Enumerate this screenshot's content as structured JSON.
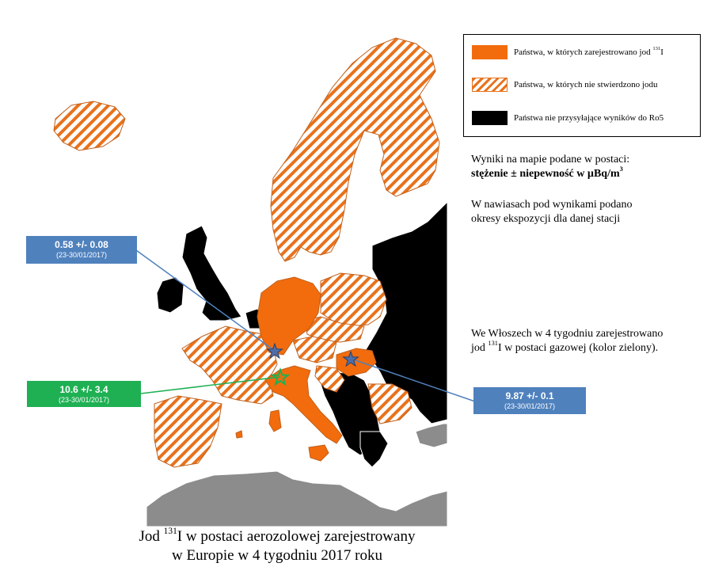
{
  "legend": {
    "detected_label": "Państwa, w których zarejestrowano jod",
    "detected_isotope": "131",
    "detected_element": "I",
    "not_detected_label": "Państwa, w których nie stwierdzono jodu",
    "no_results_label": "Państwa nie przysyłające wyników do Ro5"
  },
  "info": {
    "line1": "Wyniki na mapie podane w postaci:",
    "line2_prefix": "stężenie ± niepewność w µBq/m",
    "line2_exp": "3",
    "line3": "W nawiasach pod wynikami podano",
    "line4": "okresy ekspozycji dla danej stacji",
    "italy_line1": "We Włoszech w 4 tygodniu zarejestrowano",
    "italy_line2_prefix": "jod ",
    "italy_line2_isotope": "131",
    "italy_line2_suffix": "I w postaci gazowej (kolor zielony)."
  },
  "results": [
    {
      "value": "0.58 +/-  0.08",
      "period": "(23-30/01/2017)"
    },
    {
      "value": "10.6 +/-  3.4",
      "period": "(23-30/01/2017)"
    },
    {
      "value": "9.87 +/-  0.1",
      "period": "(23-30/01/2017)"
    }
  ],
  "caption": {
    "prefix": "Jod ",
    "isotope": "131",
    "line1_suffix": "I w postaci aerozolowej zarejestrowany",
    "line2": "w Europie w 4 tygodniu 2017 roku"
  },
  "colors": {
    "detected": "#f26c0d",
    "hatch": "#e8721c",
    "no_results": "#000000",
    "non_europe": "#8c8c8c",
    "blue_box": "#4f81bd",
    "green_box": "#1eb053"
  },
  "icons": {
    "station": "star-icon"
  }
}
